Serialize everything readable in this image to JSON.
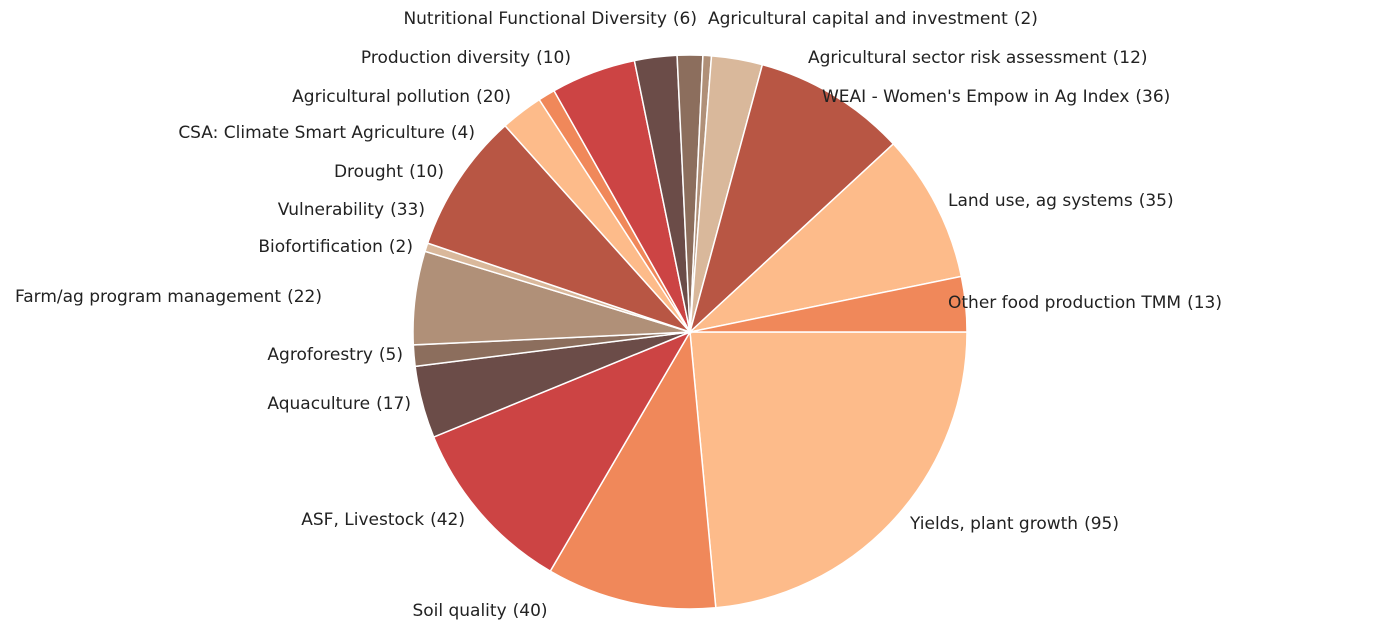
{
  "chart_data": {
    "type": "pie",
    "categories": [
      "Yields, plant growth",
      "Soil quality",
      "ASF, Livestock",
      "Aquaculture",
      "Agroforestry",
      "Farm/ag program management",
      "Biofortification",
      "Vulnerability",
      "Drought",
      "CSA: Climate Smart Agriculture",
      "Agricultural pollution",
      "Production diversity",
      "Nutritional Functional Diversity",
      "Agricultural capital and investment",
      "Agricultural sector risk assessment",
      "WEAI - Women's Empow in Ag Index",
      "Land use, ag systems",
      "Other food production TMM"
    ],
    "values": [
      95,
      40,
      42,
      17,
      5,
      22,
      2,
      33,
      10,
      4,
      20,
      10,
      6,
      2,
      12,
      36,
      35,
      13
    ],
    "value_labels": [
      "(95)",
      "(40)",
      "(42)",
      "(17)",
      "(5)",
      "(22)",
      "(2)",
      "(33)",
      "(10)",
      "(4)",
      "(20)",
      "(10)",
      "(6)",
      "(2)",
      "(12)",
      "(36)",
      "(35)",
      "(13)"
    ],
    "colors": [
      "#fdbb8a",
      "#f0885a",
      "#cc4444",
      "#6b4c48",
      "#8c6e5d",
      "#b09078",
      "#d9b89b",
      "#b85644",
      "#fdbb8a",
      "#f0885a",
      "#cc4444",
      "#6b4c48",
      "#8c6e5d",
      "#b09078",
      "#d9b89b",
      "#b85644",
      "#fdbb8a",
      "#f0885a"
    ]
  }
}
